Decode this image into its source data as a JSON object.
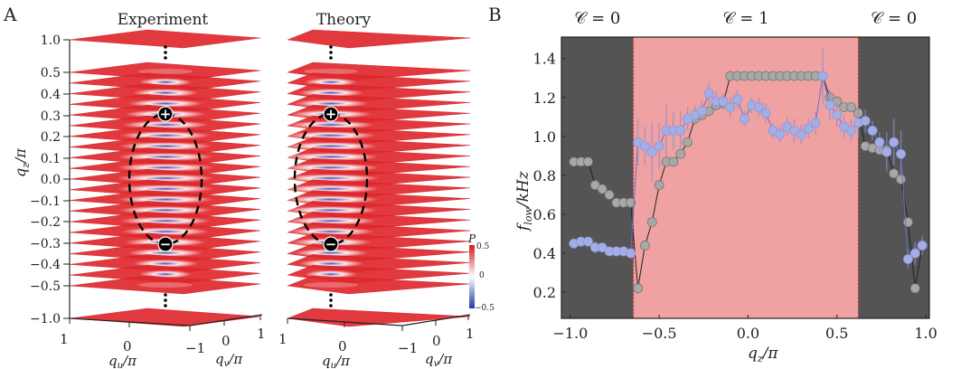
{
  "panelA": {
    "letter": "A",
    "experiment_title": "Experiment",
    "theory_title": "Theory",
    "z_ticks": [
      "1.0",
      "0.5",
      "0.4",
      "0.3",
      "0.2",
      "0.1",
      "0.0",
      "−0.1",
      "−0.2",
      "−0.3",
      "−0.4",
      "−0.5",
      "−1.0"
    ],
    "z_label": "q_z/π",
    "u_ticks": [
      "1",
      "0"
    ],
    "v_ticks": [
      "−1",
      "0",
      "1"
    ],
    "u_label": "q_u/π",
    "v_label": "q_v/π",
    "plus_marker": "+",
    "minus_marker": "−",
    "colorbar": {
      "label": "P",
      "max": "0.5",
      "mid": "0",
      "min": "−0.5",
      "colors": [
        "#d7191c",
        "#ffffff",
        "#1f3b9b"
      ]
    },
    "plane_color": "#e0282e",
    "low_color": "#3a52c4"
  },
  "chart_data": {
    "type": "scatter",
    "panel_letter": "B",
    "xlabel": "q_z/π",
    "ylabel": "f_low/kHz",
    "xlim": [
      -1.05,
      1.02
    ],
    "ylim": [
      0.066,
      1.51
    ],
    "xticks": [
      -1.0,
      -0.5,
      0.0,
      0.5,
      1.0
    ],
    "xtick_labels": [
      "−1.0",
      "−0.5",
      "0.0",
      "0.5",
      "1.0"
    ],
    "yticks": [
      0.2,
      0.4,
      0.6,
      0.8,
      1.0,
      1.2,
      1.4
    ],
    "ytick_labels": [
      "0.2",
      "0.4",
      "0.6",
      "0.8",
      "1.0",
      "1.2",
      "1.4"
    ],
    "grid": false,
    "regions": [
      {
        "label": "𝒞 = 0",
        "x0": -1.05,
        "x1": -0.645,
        "color": "#545454"
      },
      {
        "label": "𝒞 = 1",
        "x0": -0.645,
        "x1": 0.62,
        "color": "#f0a1a1"
      },
      {
        "label": "𝒞 = 0",
        "x0": 0.62,
        "x1": 1.02,
        "color": "#545454"
      }
    ],
    "series": [
      {
        "name": "theory",
        "color": "#a8a8a8",
        "x": [
          -0.98,
          -0.94,
          -0.9,
          -0.86,
          -0.82,
          -0.78,
          -0.74,
          -0.7,
          -0.66,
          -0.62,
          -0.58,
          -0.54,
          -0.5,
          -0.46,
          -0.42,
          -0.38,
          -0.34,
          -0.3,
          -0.26,
          -0.22,
          -0.18,
          -0.14,
          -0.1,
          -0.06,
          -0.02,
          0.02,
          0.06,
          0.1,
          0.14,
          0.18,
          0.22,
          0.26,
          0.3,
          0.34,
          0.38,
          0.42,
          0.46,
          0.5,
          0.54,
          0.58,
          0.62,
          0.66,
          0.7,
          0.74,
          0.78,
          0.82,
          0.86,
          0.9,
          0.94,
          0.98
        ],
        "y": [
          0.87,
          0.87,
          0.87,
          0.75,
          0.73,
          0.7,
          0.66,
          0.66,
          0.66,
          0.22,
          0.44,
          0.56,
          0.75,
          0.87,
          0.87,
          0.91,
          0.97,
          1.09,
          1.11,
          1.13,
          1.16,
          1.17,
          1.31,
          1.31,
          1.31,
          1.31,
          1.31,
          1.31,
          1.31,
          1.31,
          1.31,
          1.31,
          1.31,
          1.31,
          1.31,
          1.31,
          1.2,
          1.18,
          1.15,
          1.15,
          1.12,
          0.95,
          0.94,
          0.93,
          0.93,
          0.81,
          0.78,
          0.56,
          0.22,
          0.44
        ]
      },
      {
        "name": "experiment",
        "color": "#a3aee6",
        "x": [
          -0.98,
          -0.94,
          -0.9,
          -0.86,
          -0.82,
          -0.78,
          -0.74,
          -0.7,
          -0.66,
          -0.62,
          -0.58,
          -0.54,
          -0.5,
          -0.46,
          -0.42,
          -0.38,
          -0.34,
          -0.3,
          -0.26,
          -0.22,
          -0.18,
          -0.14,
          -0.1,
          -0.06,
          -0.02,
          0.02,
          0.06,
          0.1,
          0.14,
          0.18,
          0.22,
          0.26,
          0.3,
          0.34,
          0.38,
          0.42,
          0.46,
          0.5,
          0.54,
          0.58,
          0.62,
          0.66,
          0.7,
          0.74,
          0.78,
          0.82,
          0.86,
          0.9,
          0.94,
          0.98
        ],
        "y": [
          0.45,
          0.46,
          0.46,
          0.43,
          0.43,
          0.41,
          0.41,
          0.41,
          0.4,
          0.97,
          0.95,
          0.92,
          0.95,
          1.03,
          1.03,
          1.03,
          1.09,
          1.11,
          1.13,
          1.22,
          1.18,
          1.18,
          1.15,
          1.19,
          1.09,
          1.16,
          1.15,
          1.12,
          1.03,
          1.01,
          1.05,
          1.03,
          1.01,
          1.04,
          1.07,
          1.31,
          1.16,
          1.11,
          1.05,
          1.03,
          1.07,
          1.08,
          1.03,
          0.97,
          0.92,
          0.97,
          0.91,
          0.37,
          0.4,
          0.44
        ],
        "err": [
          0.02,
          0.02,
          0.02,
          0.03,
          0.02,
          0.02,
          0.02,
          0.02,
          0.02,
          0.12,
          0.1,
          0.15,
          0.12,
          0.14,
          0.1,
          0.1,
          0.06,
          0.05,
          0.05,
          0.06,
          0.05,
          0.04,
          0.05,
          0.05,
          0.04,
          0.04,
          0.05,
          0.05,
          0.04,
          0.04,
          0.05,
          0.06,
          0.05,
          0.05,
          0.06,
          0.14,
          0.08,
          0.06,
          0.06,
          0.06,
          0.07,
          0.06,
          0.05,
          0.05,
          0.1,
          0.12,
          0.12,
          0.05,
          0.06,
          0.05
        ]
      }
    ]
  }
}
